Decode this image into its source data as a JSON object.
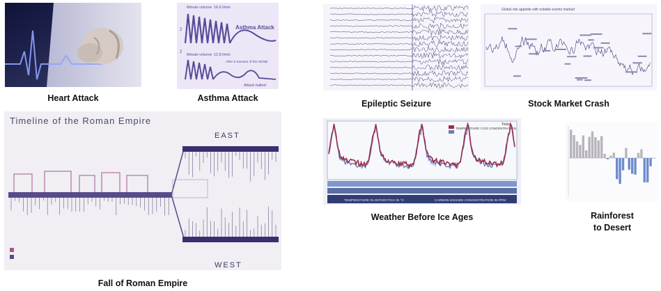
{
  "heart": {
    "caption": "Heart Attack"
  },
  "asthma": {
    "caption": "Asthma Attack",
    "top_label": "Minute volume: 16.6 l/min",
    "mid_label": "Minute volume: 12.8 l/min",
    "sub_label": "After 5 minutes of the NDSB",
    "attack_label": "Asthma Attack",
    "bottom_label": "Attack halted"
  },
  "seizure": {
    "caption": "Epileptic Seizure"
  },
  "stock": {
    "caption": "Stock Market Crash",
    "top_label": "Global risk appetite with notable events marked"
  },
  "rome": {
    "caption": "Fall of Roman Empire",
    "title": "Timeline of the Roman Empire",
    "east": "EAST",
    "west": "WEST"
  },
  "ice": {
    "caption": "Weather Before Ice Ages",
    "legend": "TEMPERATURE / CO2 CONCENTRATION",
    "footer_left": "TEMPERATURE IN ANTARCTICA IN °C",
    "footer_right": "CARBON DIOXIDE CONCENTRATION IN PPM",
    "today": "Today"
  },
  "rain": {
    "caption_line1": "Rainforest",
    "caption_line2": "to Desert"
  },
  "colors": {
    "heart_bg": "#1a1f4d",
    "asthma_bg": "#ece6f6",
    "line_purple": "#5b4a9a",
    "ice_red": "#9b2c4c",
    "ice_blue": "#6a7fb5",
    "rain_grey": "#b8b3bd",
    "rain_blue": "#6f8ccc"
  }
}
